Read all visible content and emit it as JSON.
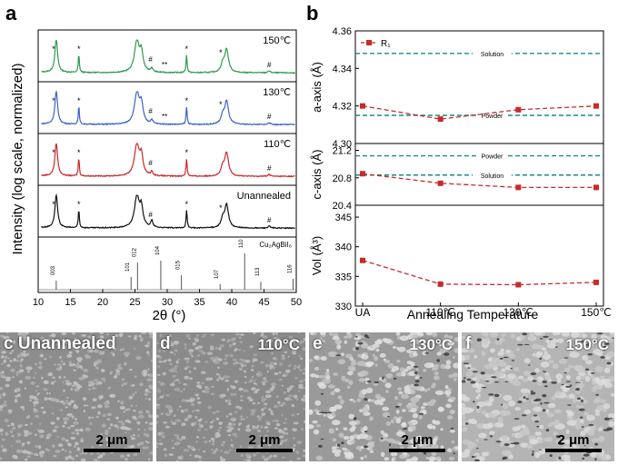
{
  "panels": {
    "a": {
      "label": "a",
      "ylabel": "Intensity (log scale, normalized)",
      "xlabel": "2θ (°)",
      "xticks": [
        "10",
        "15",
        "20",
        "25",
        "30",
        "35",
        "40",
        "45",
        "50"
      ],
      "traces": [
        {
          "name": "150℃",
          "color": "#2e9a4e"
        },
        {
          "name": "130℃",
          "color": "#3a64c4"
        },
        {
          "name": "110℃",
          "color": "#c8292b"
        },
        {
          "name": "Unannealed",
          "color": "#111111"
        }
      ],
      "reference": {
        "name": "Cu₂AgBiI₆",
        "peaks": [
          {
            "x": 12.8,
            "label": "003",
            "h": 0.25
          },
          {
            "x": 24.4,
            "label": "101",
            "h": 0.35
          },
          {
            "x": 25.4,
            "label": "012",
            "h": 0.75
          },
          {
            "x": 29.0,
            "label": "104",
            "h": 0.8
          },
          {
            "x": 32.2,
            "label": "015",
            "h": 0.4
          },
          {
            "x": 38.2,
            "label": "107",
            "h": 0.15
          },
          {
            "x": 42.0,
            "label": "110",
            "h": 1.0
          },
          {
            "x": 44.5,
            "label": "113",
            "h": 0.22
          },
          {
            "x": 49.5,
            "label": "116",
            "h": 0.3
          }
        ]
      },
      "star": "*",
      "hash": "#",
      "dstar": "**"
    },
    "b": {
      "label": "b",
      "xlabel": "Annealing Temperature",
      "categories": [
        "UA",
        "110℃",
        "130℃",
        "150℃"
      ],
      "legend": "R₁",
      "subplots": [
        {
          "ylabel": "a-axis (Å)",
          "yticks": [
            "4.36",
            "4.34",
            "4.32",
            "4.30"
          ],
          "ylim": [
            4.3,
            4.36
          ],
          "values": [
            4.32,
            4.313,
            4.318,
            4.32
          ],
          "refs": [
            {
              "label": "Solution",
              "y": 4.348
            },
            {
              "label": "Powder",
              "y": 4.315
            }
          ]
        },
        {
          "ylabel": "c-axis (Å)",
          "yticks": [
            "21.2",
            "20.8",
            "20.4"
          ],
          "ylim": [
            20.4,
            21.3
          ],
          "values": [
            20.86,
            20.72,
            20.66,
            20.66
          ],
          "refs": [
            {
              "label": "Powder",
              "y": 21.12
            },
            {
              "label": "Solution",
              "y": 20.84
            }
          ]
        },
        {
          "ylabel": "Vol (Å³)",
          "yticks": [
            "345",
            "340",
            "335",
            "330"
          ],
          "ylim": [
            330,
            347
          ],
          "values": [
            337.7,
            333.7,
            333.6,
            334.0
          ],
          "refs": []
        }
      ]
    },
    "sem": [
      {
        "label": "c",
        "title": "Unannealed",
        "scale": "2 μm"
      },
      {
        "label": "d",
        "title": "110°C",
        "scale": "2 μm"
      },
      {
        "label": "e",
        "title": "130°C",
        "scale": "2 μm"
      },
      {
        "label": "f",
        "title": "150°C",
        "scale": "2 μm"
      }
    ]
  }
}
